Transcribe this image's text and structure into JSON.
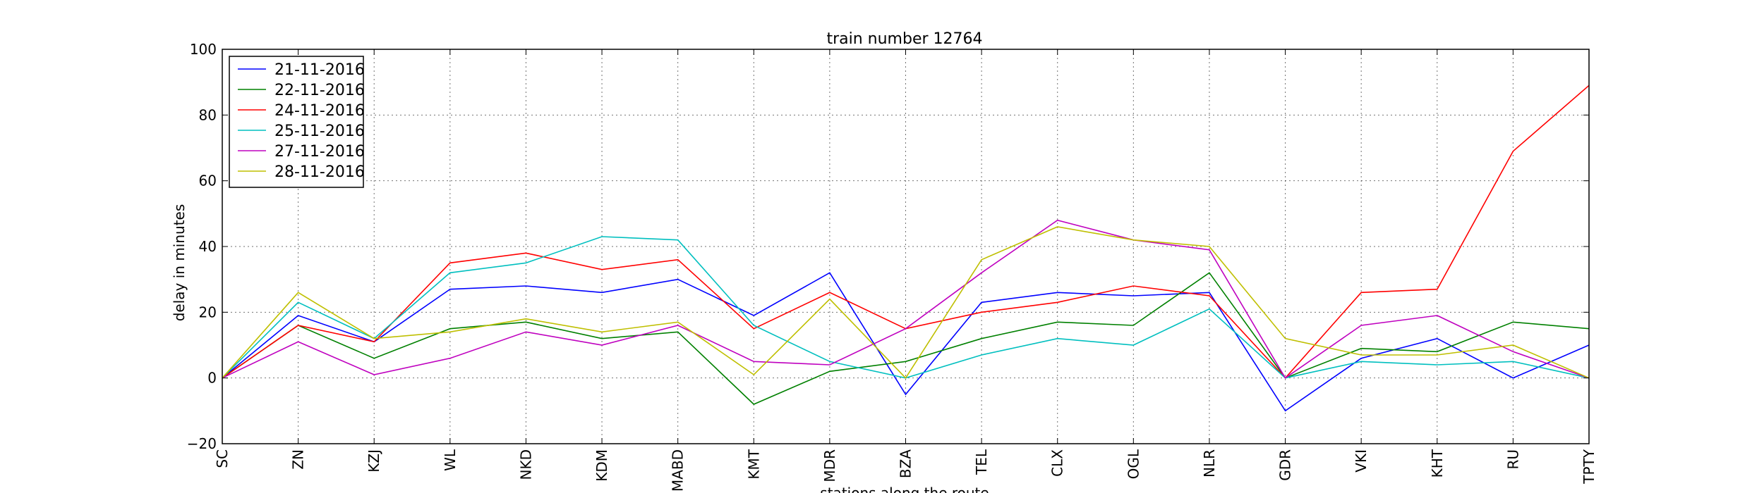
{
  "chart_data": {
    "type": "line",
    "title": "train number 12764",
    "xlabel": "stations along the route",
    "ylabel": "delay in minutes",
    "categories": [
      "SC",
      "ZN",
      "KZJ",
      "WL",
      "NKD",
      "KDM",
      "MABD",
      "KMT",
      "MDR",
      "BZA",
      "TEL",
      "CLX",
      "OGL",
      "NLR",
      "GDR",
      "VKI",
      "KHT",
      "RU",
      "TPTY"
    ],
    "ylim": [
      -20,
      100
    ],
    "yticks": [
      -20,
      0,
      20,
      40,
      60,
      80,
      100
    ],
    "grid": true,
    "legend_position": "top-left",
    "series": [
      {
        "name": "21-11-2016",
        "color": "#0000ff",
        "values": [
          0,
          19,
          11,
          27,
          28,
          26,
          30,
          19,
          32,
          -5,
          23,
          26,
          25,
          26,
          -10,
          6,
          12,
          0,
          10
        ]
      },
      {
        "name": "22-11-2016",
        "color": "#008000",
        "values": [
          0,
          16,
          6,
          15,
          17,
          12,
          14,
          -8,
          2,
          5,
          12,
          17,
          16,
          32,
          0,
          9,
          8,
          17,
          15
        ]
      },
      {
        "name": "24-11-2016",
        "color": "#ff0000",
        "values": [
          0,
          16,
          11,
          35,
          38,
          33,
          36,
          15,
          26,
          15,
          20,
          23,
          28,
          25,
          0,
          26,
          27,
          69,
          89
        ]
      },
      {
        "name": "25-11-2016",
        "color": "#00bfbf",
        "values": [
          0,
          23,
          12,
          32,
          35,
          43,
          42,
          16,
          5,
          0,
          7,
          12,
          10,
          21,
          0,
          5,
          4,
          5,
          0
        ]
      },
      {
        "name": "27-11-2016",
        "color": "#bf00bf",
        "values": [
          0,
          11,
          1,
          6,
          14,
          10,
          16,
          5,
          4,
          15,
          32,
          48,
          42,
          39,
          0,
          16,
          19,
          8,
          0
        ]
      },
      {
        "name": "28-11-2016",
        "color": "#bfbf00",
        "values": [
          0,
          26,
          12,
          14,
          18,
          14,
          17,
          1,
          24,
          0,
          36,
          46,
          42,
          40,
          12,
          7,
          7,
          10,
          0
        ]
      }
    ]
  }
}
